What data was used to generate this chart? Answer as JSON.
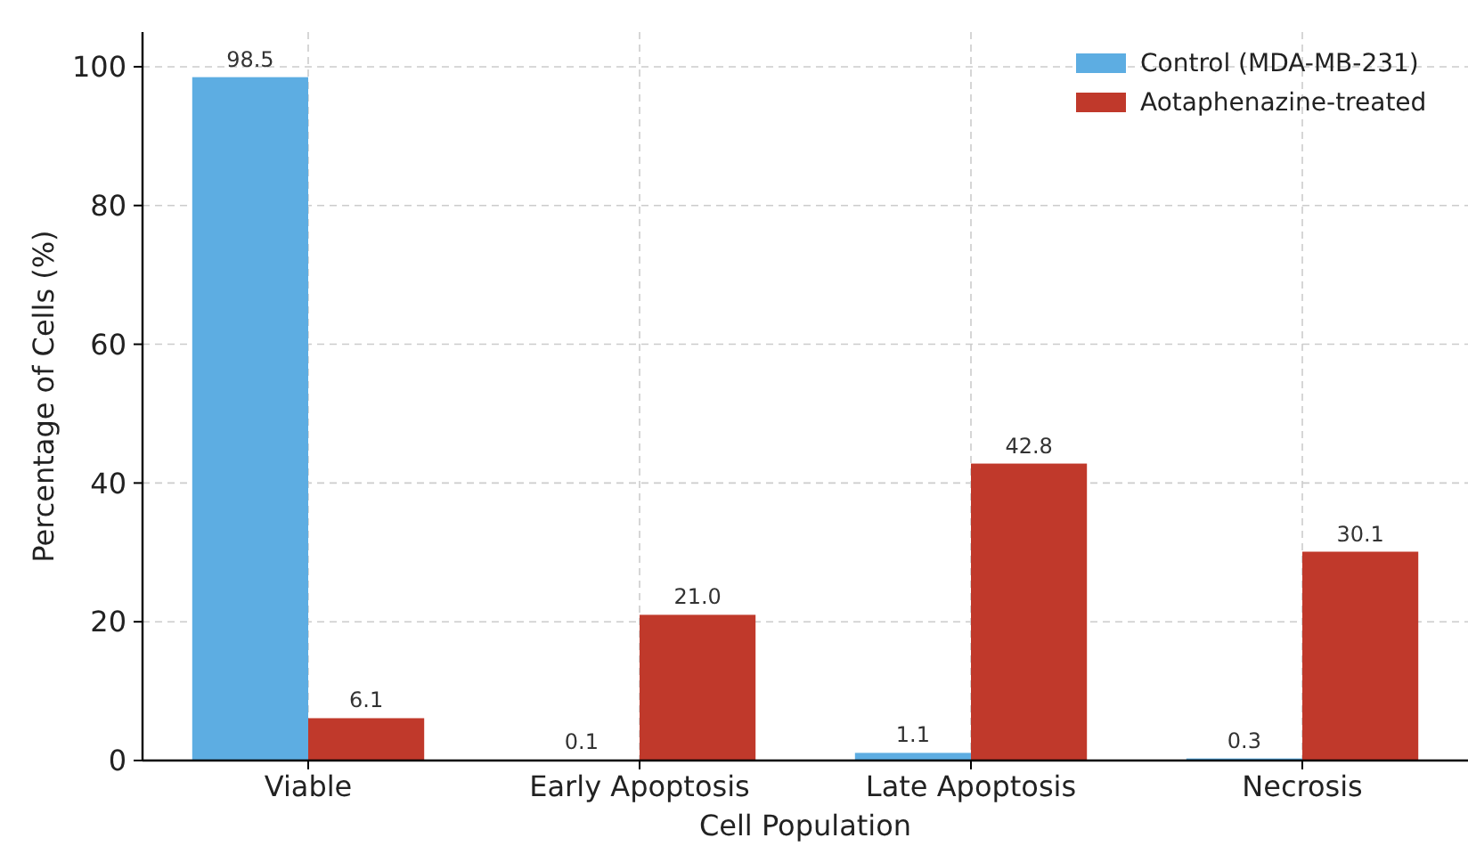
{
  "chart_data": {
    "type": "bar",
    "xlabel": "Cell Population",
    "ylabel": "Percentage of Cells (%)",
    "categories": [
      "Viable",
      "Early Apoptosis",
      "Late Apoptosis",
      "Necrosis"
    ],
    "series": [
      {
        "name": "Control (MDA-MB-231)",
        "color": "#5dade2",
        "values": [
          98.5,
          0.1,
          1.1,
          0.3
        ],
        "value_labels": [
          "98.5",
          "0.1",
          "1.1",
          "0.3"
        ]
      },
      {
        "name": "Aotaphenazine-treated",
        "color": "#c0392b",
        "values": [
          6.1,
          21.0,
          42.8,
          30.1
        ],
        "value_labels": [
          "6.1",
          "21.0",
          "42.8",
          "30.1"
        ]
      }
    ],
    "ylim": [
      0,
      105
    ],
    "yticks": [
      0,
      20,
      40,
      60,
      80,
      100
    ],
    "grid": true,
    "legend": "top right"
  }
}
